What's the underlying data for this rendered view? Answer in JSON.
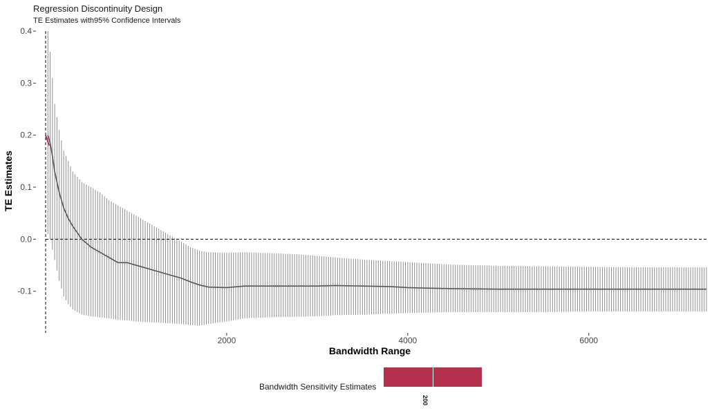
{
  "chart_data": {
    "type": "errorbar",
    "title": "Regression Discontinuity Design",
    "subtitle": "TE Estimates with95% Confidence Intervals",
    "xlabel": "Bandwidth Range",
    "ylabel": "TE Estimates",
    "xlim": [
      0,
      7300
    ],
    "ylim": [
      -0.18,
      0.4
    ],
    "x_ticks": [
      2000,
      4000,
      6000
    ],
    "x_tick_labels": [
      "2000",
      "4000",
      "6000"
    ],
    "y_ticks": [
      -0.1,
      0.0,
      0.1,
      0.2,
      0.3,
      0.4
    ],
    "y_tick_labels": [
      "-0.1",
      "0.0",
      "0.1",
      "0.2",
      "0.3",
      "0.4"
    ],
    "reference_lines": {
      "horizontal_y": 0,
      "vertical_x": 0
    },
    "grid": false,
    "colors": {
      "estimate_line": "#555555",
      "interval": "#7f7f7f",
      "highlight": "#b5304d"
    },
    "series": [
      {
        "x": [
          25,
          50,
          75,
          100,
          150,
          200,
          250,
          300,
          400,
          500,
          600,
          700,
          800,
          900,
          1000,
          1100,
          1200,
          1300,
          1400,
          1500,
          1600,
          1700,
          1800,
          2000,
          2200,
          2500,
          2800,
          3000,
          3200,
          3500,
          3800,
          4000,
          4200,
          4500,
          5000,
          5500,
          6000,
          6500,
          7000,
          7300
        ],
        "y": [
          0.2,
          0.185,
          0.16,
          0.13,
          0.09,
          0.06,
          0.04,
          0.025,
          0.0,
          -0.015,
          -0.025,
          -0.035,
          -0.045,
          -0.045,
          -0.05,
          -0.055,
          -0.06,
          -0.065,
          -0.07,
          -0.075,
          -0.082,
          -0.088,
          -0.092,
          -0.093,
          -0.09,
          -0.09,
          -0.09,
          -0.09,
          -0.089,
          -0.09,
          -0.091,
          -0.093,
          -0.094,
          -0.095,
          -0.096,
          -0.096,
          -0.096,
          -0.096,
          -0.096,
          -0.096
        ],
        "upper": [
          0.4,
          0.36,
          0.31,
          0.26,
          0.21,
          0.17,
          0.15,
          0.13,
          0.11,
          0.1,
          0.09,
          0.075,
          0.065,
          0.055,
          0.045,
          0.035,
          0.025,
          0.015,
          0.005,
          -0.005,
          -0.015,
          -0.022,
          -0.025,
          -0.026,
          -0.025,
          -0.027,
          -0.029,
          -0.032,
          -0.035,
          -0.039,
          -0.042,
          -0.044,
          -0.046,
          -0.049,
          -0.051,
          -0.052,
          -0.053,
          -0.054,
          -0.054,
          -0.054
        ],
        "lower": [
          0.01,
          0.0,
          -0.02,
          -0.04,
          -0.08,
          -0.11,
          -0.125,
          -0.135,
          -0.145,
          -0.148,
          -0.15,
          -0.152,
          -0.155,
          -0.156,
          -0.158,
          -0.159,
          -0.16,
          -0.161,
          -0.162,
          -0.163,
          -0.165,
          -0.166,
          -0.163,
          -0.158,
          -0.152,
          -0.15,
          -0.149,
          -0.148,
          -0.146,
          -0.145,
          -0.143,
          -0.142,
          -0.141,
          -0.14,
          -0.14,
          -0.14,
          -0.139,
          -0.139,
          -0.139,
          -0.139
        ]
      }
    ],
    "highlight_segment": {
      "x": [
        0,
        40
      ],
      "y": [
        0.2,
        0.18
      ]
    },
    "legend": {
      "label": "Bandwidth Sensitivity Estimates",
      "tick_label": "200",
      "color": "#b5304d",
      "placement": "bottom"
    }
  }
}
